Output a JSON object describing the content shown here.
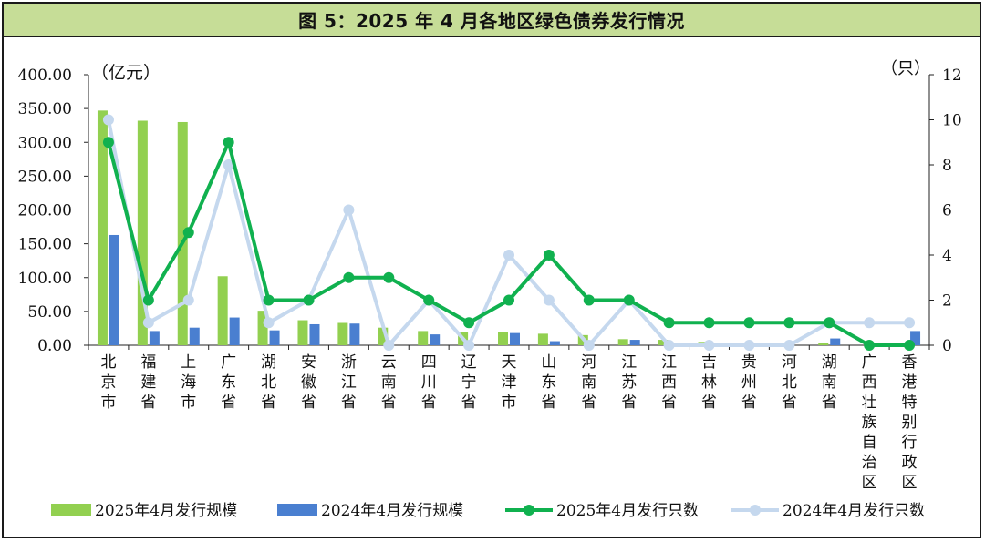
{
  "title": "图 5：2025 年 4 月各地区绿色债券发行情况",
  "chart_data": {
    "type": "bar",
    "title": "图 5：2025 年 4 月各地区绿色债券发行情况",
    "left_unit": "（亿元）",
    "right_unit": "（只）",
    "categories": [
      "北京市",
      "福建省",
      "上海市",
      "广东省",
      "湖北省",
      "安徽省",
      "浙江省",
      "云南省",
      "四川省",
      "辽宁省",
      "天津市",
      "山东省",
      "河南省",
      "江苏省",
      "江西省",
      "吉林省",
      "贵州省",
      "河北省",
      "湖南省",
      "广西壮族自治区",
      "香港特别行政区"
    ],
    "left_axis": {
      "min": 0,
      "max": 400,
      "ticks": [
        "0.00",
        "50.00",
        "100.00",
        "150.00",
        "200.00",
        "250.00",
        "300.00",
        "350.00",
        "400.00"
      ]
    },
    "right_axis": {
      "min": 0,
      "max": 12,
      "ticks": [
        "0",
        "2",
        "4",
        "6",
        "8",
        "10",
        "12"
      ]
    },
    "series": [
      {
        "name": "2025年4月发行规模",
        "kind": "bar",
        "axis": "left",
        "color": "#92d050",
        "values": [
          347,
          332,
          330,
          102,
          51,
          37,
          33,
          26,
          21,
          19,
          20,
          17,
          15,
          9,
          8,
          5,
          0,
          0,
          4,
          0,
          0
        ]
      },
      {
        "name": "2024年4月发行规模",
        "kind": "bar",
        "axis": "left",
        "color": "#4a7fd0",
        "values": [
          163,
          21,
          26,
          41,
          22,
          31,
          32,
          0,
          16,
          0,
          18,
          6,
          0,
          8,
          0,
          0,
          0,
          0,
          10,
          0,
          21
        ]
      },
      {
        "name": "2025年4月发行只数",
        "kind": "line",
        "axis": "right",
        "color": "#10b14f",
        "values": [
          9,
          2,
          5,
          9,
          2,
          2,
          3,
          3,
          2,
          1,
          2,
          4,
          2,
          2,
          1,
          1,
          1,
          1,
          1,
          0,
          0
        ]
      },
      {
        "name": "2024年4月发行只数",
        "kind": "line",
        "axis": "right",
        "color": "#c5d8ee",
        "values": [
          10,
          1,
          2,
          8,
          1,
          2,
          6,
          0,
          2,
          0,
          4,
          2,
          0,
          2,
          0,
          0,
          0,
          0,
          1,
          1,
          1
        ]
      }
    ],
    "legend_position": "bottom",
    "grid": false
  }
}
